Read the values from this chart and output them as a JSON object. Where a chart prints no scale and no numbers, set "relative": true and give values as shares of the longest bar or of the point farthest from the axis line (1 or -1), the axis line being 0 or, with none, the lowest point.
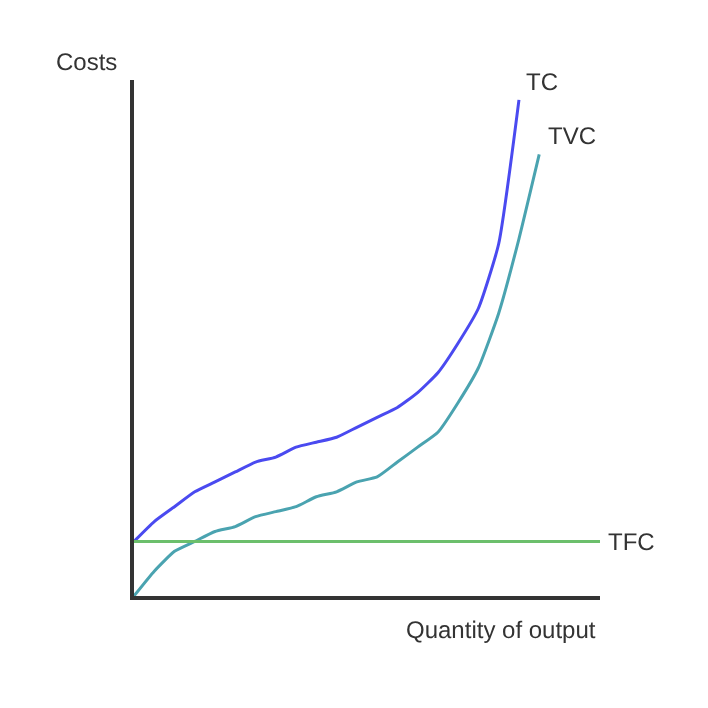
{
  "chart_data": {
    "type": "line",
    "relative": true,
    "xlabel": "Quantity of output",
    "ylabel": "Costs",
    "categories": [
      null,
      null,
      null,
      null,
      null,
      null,
      null,
      null,
      null,
      null,
      null,
      null,
      null,
      null,
      null,
      null,
      null,
      null,
      null,
      null,
      null,
      null,
      null,
      null
    ],
    "series": [
      {
        "name": "TC",
        "color": "#4a4af0",
        "values": [
          0.11,
          0.15,
          0.18,
          0.21,
          0.23,
          0.25,
          0.27,
          0.28,
          0.3,
          0.31,
          0.32,
          0.34,
          0.36,
          0.38,
          0.41,
          0.45,
          0.51,
          0.58,
          0.71,
          1,
          null,
          null,
          null,
          null
        ]
      },
      {
        "name": "TVC",
        "color": "#4aa3b0",
        "values": [
          0,
          0.05,
          0.09,
          0.11,
          0.13,
          0.14,
          0.16,
          0.17,
          0.18,
          0.2,
          0.21,
          0.23,
          0.24,
          0.27,
          0.3,
          0.33,
          0.39,
          0.46,
          0.57,
          0.72,
          0.89,
          null,
          null,
          null
        ]
      },
      {
        "name": "TFC",
        "color": "#6cbf6c",
        "values": [
          0.11,
          0.11,
          0.11,
          0.11,
          0.11,
          0.11,
          0.11,
          0.11,
          0.11,
          0.11,
          0.11,
          0.11,
          0.11,
          0.11,
          0.11,
          0.11,
          0.11,
          0.11,
          0.11,
          0.11,
          0.11,
          0.11,
          0.11,
          0.11
        ]
      }
    ],
    "legend": false,
    "marker": "none",
    "line_style": "solid"
  }
}
